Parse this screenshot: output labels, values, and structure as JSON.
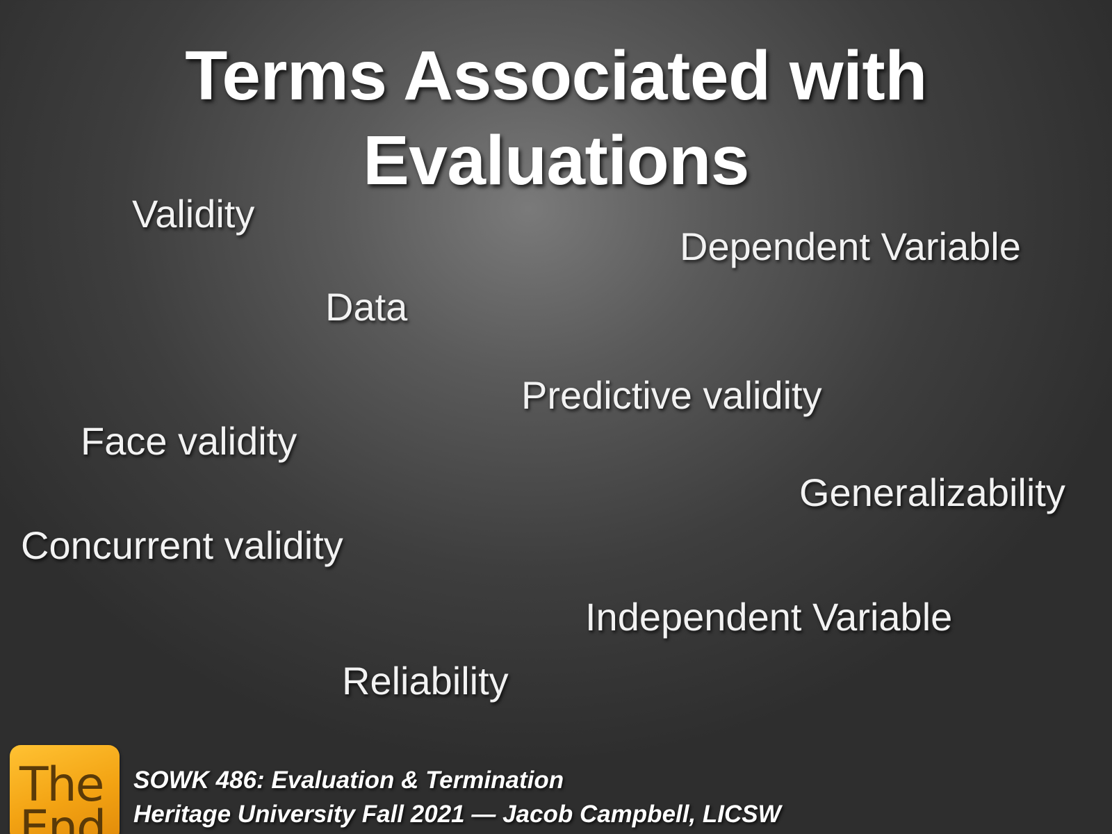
{
  "slide": {
    "title_line1": "Terms Associated with",
    "title_line2": "Evaluations",
    "terms": {
      "validity": "Validity",
      "dependent_variable": "Dependent Variable",
      "data": "Data",
      "predictive_validity": "Predictive validity",
      "face_validity": "Face validity",
      "generalizability": "Generalizability",
      "concurrent_validity": "Concurrent validity",
      "independent_variable": "Independent Variable",
      "reliability": "Reliability"
    }
  },
  "footer": {
    "logo_line1": "The",
    "logo_line2": "End",
    "logo_color": "#f3a313",
    "course": "SOWK 486: Evaluation & Termination",
    "credit": "Heritage University Fall 2021 — Jacob Campbell, LICSW"
  }
}
